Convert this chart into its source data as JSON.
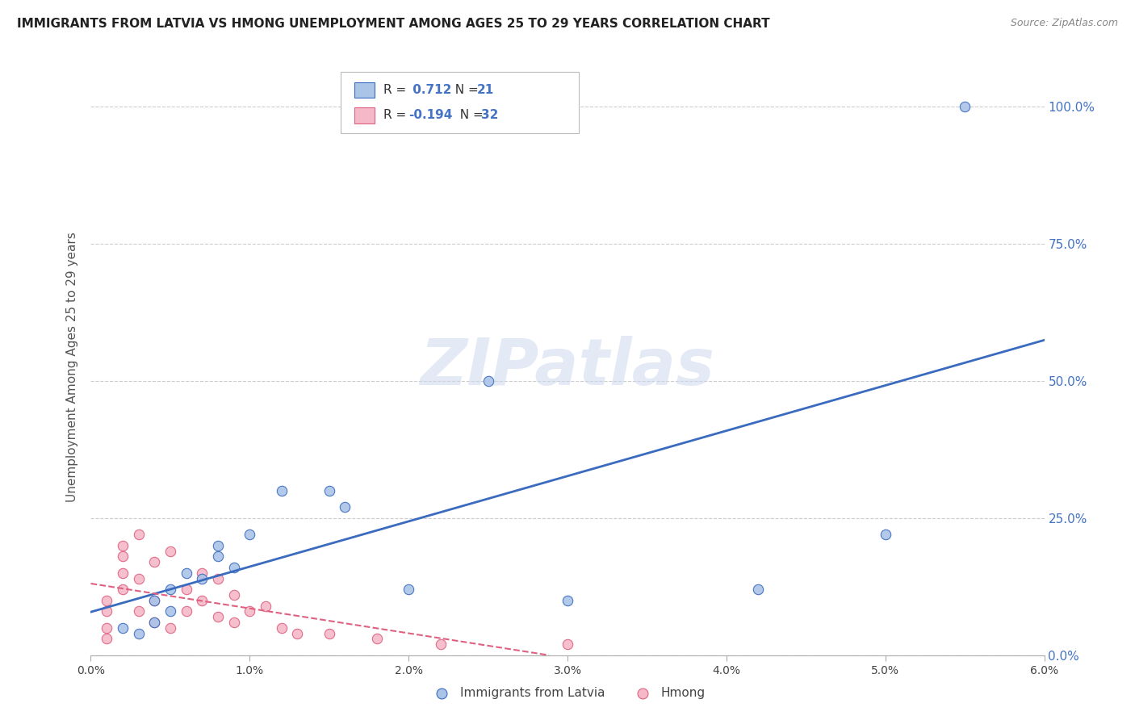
{
  "title": "IMMIGRANTS FROM LATVIA VS HMONG UNEMPLOYMENT AMONG AGES 25 TO 29 YEARS CORRELATION CHART",
  "source": "Source: ZipAtlas.com",
  "ylabel": "Unemployment Among Ages 25 to 29 years",
  "legend_latvia": "Immigrants from Latvia",
  "legend_hmong": "Hmong",
  "xmin": 0.0,
  "xmax": 0.06,
  "ymin": 0.0,
  "ymax": 1.05,
  "x_ticks": [
    0.0,
    0.01,
    0.02,
    0.03,
    0.04,
    0.05,
    0.06
  ],
  "x_tick_labels": [
    "0.0%",
    "1.0%",
    "2.0%",
    "3.0%",
    "4.0%",
    "5.0%",
    "6.0%"
  ],
  "y_ticks": [
    0.0,
    0.25,
    0.5,
    0.75,
    1.0
  ],
  "y_tick_labels": [
    "0.0%",
    "25.0%",
    "50.0%",
    "75.0%",
    "100.0%"
  ],
  "latvia_R": 0.712,
  "latvia_N": 21,
  "hmong_R": -0.194,
  "hmong_N": 32,
  "latvia_color": "#aac4e8",
  "hmong_color": "#f4b8c8",
  "latvia_line_color": "#3a6bbf",
  "hmong_line_color": "#e06080",
  "latvia_scatter_x": [
    0.002,
    0.003,
    0.004,
    0.004,
    0.005,
    0.005,
    0.006,
    0.007,
    0.008,
    0.008,
    0.009,
    0.01,
    0.012,
    0.015,
    0.016,
    0.02,
    0.025,
    0.03,
    0.042,
    0.05,
    0.055
  ],
  "latvia_scatter_y": [
    0.05,
    0.04,
    0.1,
    0.06,
    0.08,
    0.12,
    0.15,
    0.14,
    0.18,
    0.2,
    0.16,
    0.22,
    0.3,
    0.3,
    0.27,
    0.12,
    0.5,
    0.1,
    0.12,
    0.22,
    1.0
  ],
  "hmong_scatter_x": [
    0.001,
    0.001,
    0.001,
    0.001,
    0.002,
    0.002,
    0.002,
    0.002,
    0.003,
    0.003,
    0.003,
    0.004,
    0.004,
    0.004,
    0.005,
    0.005,
    0.006,
    0.006,
    0.007,
    0.007,
    0.008,
    0.008,
    0.009,
    0.009,
    0.01,
    0.011,
    0.012,
    0.013,
    0.015,
    0.018,
    0.022,
    0.03
  ],
  "hmong_scatter_y": [
    0.05,
    0.03,
    0.08,
    0.1,
    0.15,
    0.12,
    0.18,
    0.2,
    0.14,
    0.22,
    0.08,
    0.1,
    0.17,
    0.06,
    0.19,
    0.05,
    0.12,
    0.08,
    0.15,
    0.1,
    0.14,
    0.07,
    0.11,
    0.06,
    0.08,
    0.09,
    0.05,
    0.04,
    0.04,
    0.03,
    0.02,
    0.02
  ],
  "watermark": "ZIPatlas",
  "background_color": "#ffffff",
  "grid_color": "#cccccc",
  "title_color": "#222222",
  "axis_label_color": "#555555",
  "right_tick_color": "#4472c4"
}
